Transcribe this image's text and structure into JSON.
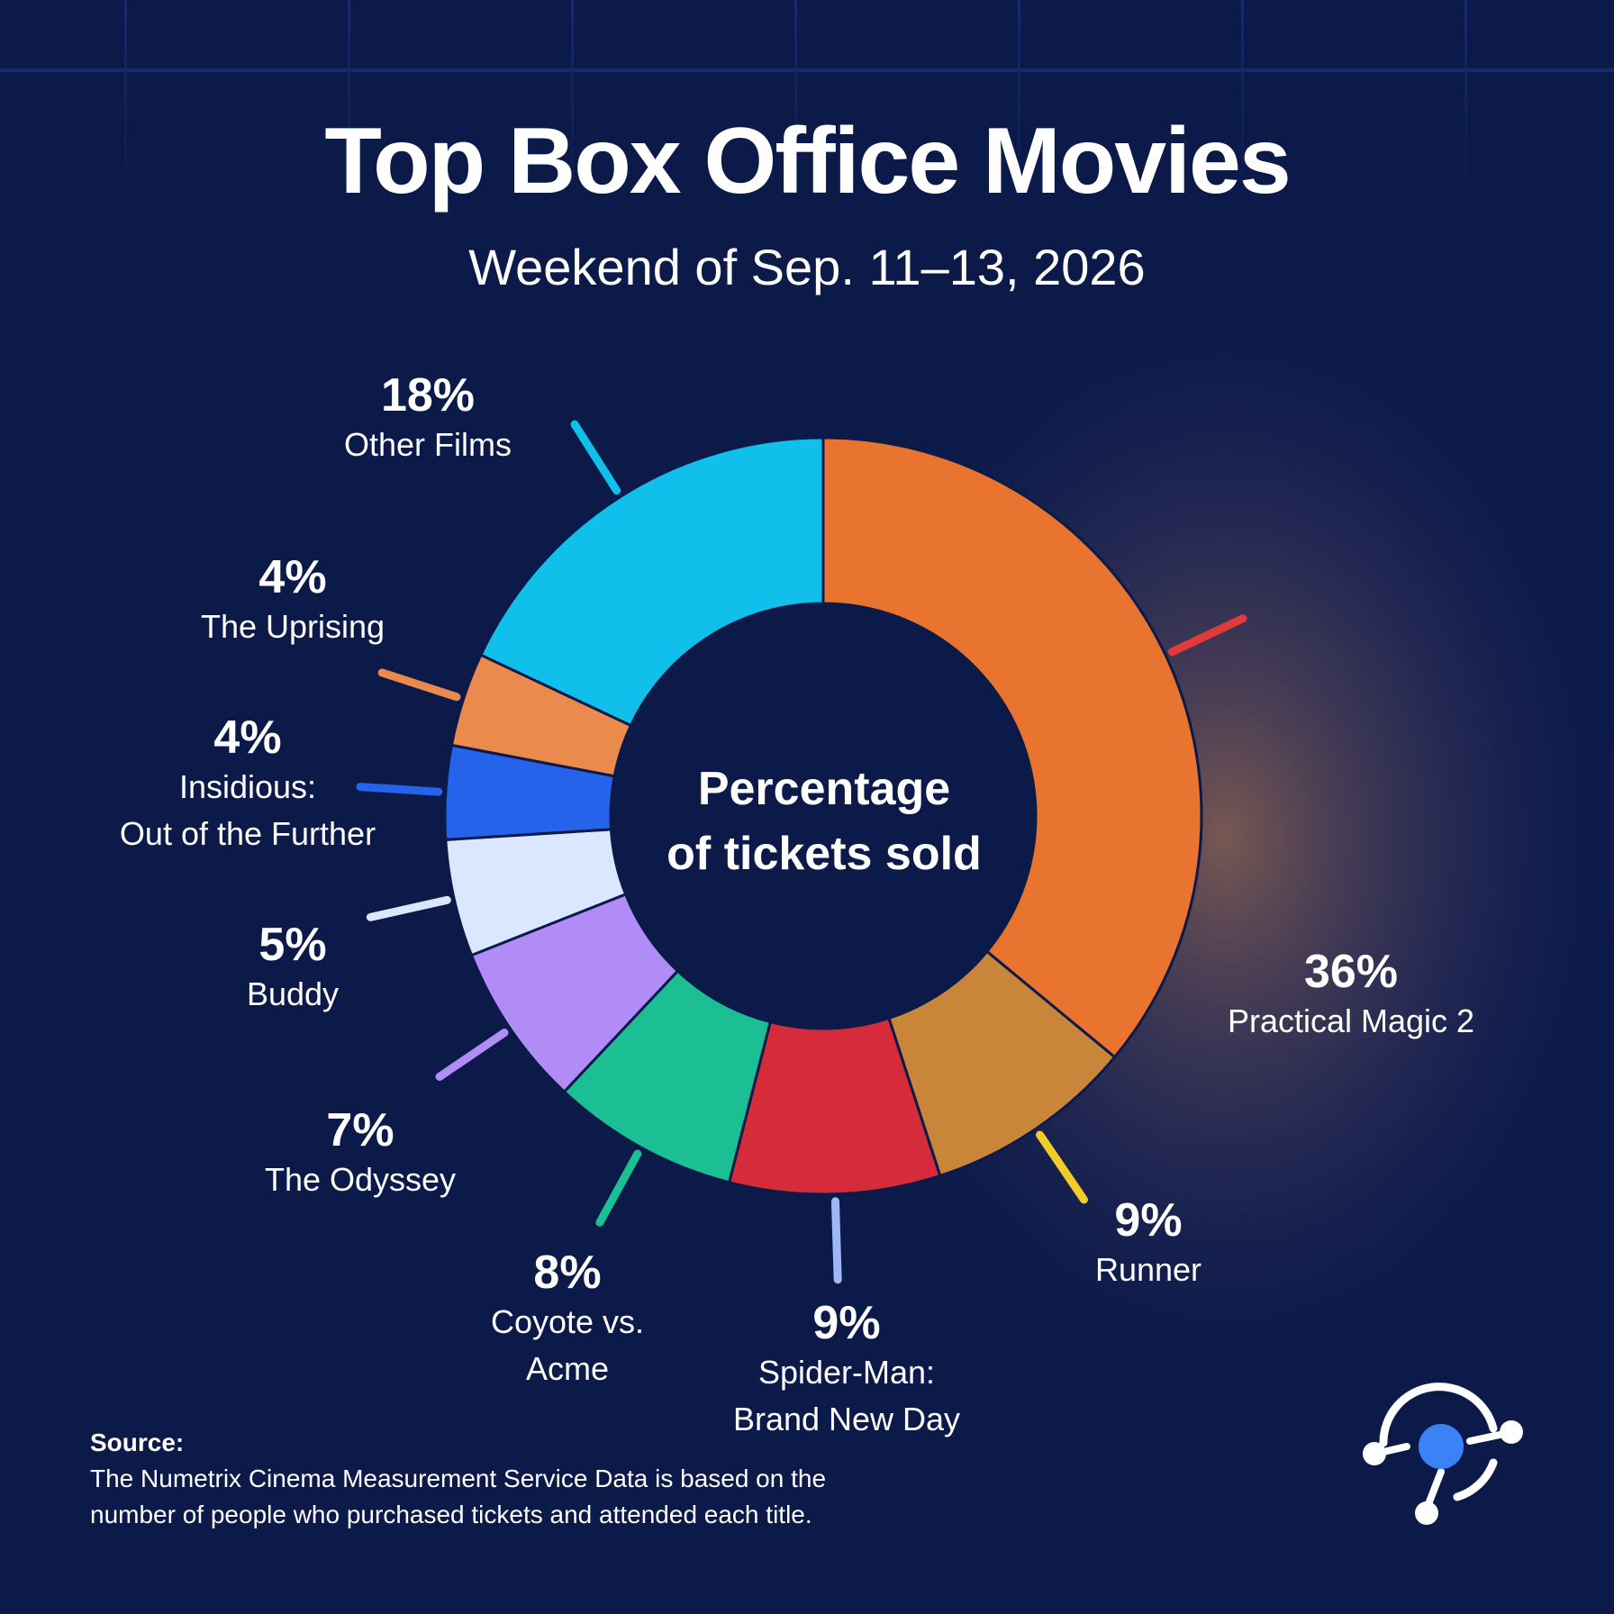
{
  "title": "Top Box Office Movies",
  "subtitle": "Weekend of Sep. 11–13, 2026",
  "center_label": [
    "Percentage",
    "of tickets sold"
  ],
  "chart_data": {
    "type": "pie",
    "title": "Top Box Office Movies",
    "subtitle": "Weekend of Sep. 11–13, 2026",
    "donut": true,
    "slices": [
      {
        "name": "Practical Magic 2",
        "value": 36,
        "label": "36%",
        "color": "#e8742f",
        "leader_color": "#e03a3a"
      },
      {
        "name": "Runner",
        "value": 9,
        "label": "9%",
        "color": "#c9863a",
        "leader_color": "#f2cd2a"
      },
      {
        "name": "Spider-Man: Brand New Day",
        "value": 9,
        "label": "9%",
        "color": "#d62b3a",
        "leader_color": "#9db8f5"
      },
      {
        "name": "Coyote vs. Acme",
        "value": 8,
        "label": "8%",
        "color": "#1bbf93",
        "leader_color": "#1bbf93"
      },
      {
        "name": "The Odyssey",
        "value": 7,
        "label": "7%",
        "color": "#b18cf7",
        "leader_color": "#b18cf7"
      },
      {
        "name": "Buddy",
        "value": 5,
        "label": "5%",
        "color": "#dbe7ff",
        "leader_color": "#dbe7ff"
      },
      {
        "name": "Insidious: Out of the Further",
        "value": 4,
        "label": "4%",
        "color": "#2563eb",
        "leader_color": "#2563eb"
      },
      {
        "name": "The Uprising",
        "value": 4,
        "label": "4%",
        "color": "#ea8a4c",
        "leader_color": "#ea8a4c"
      },
      {
        "name": "Other Films",
        "value": 18,
        "label": "18%",
        "color": "#10c0ea",
        "leader_color": "#10c0ea"
      }
    ]
  },
  "labels": [
    {
      "pct": "36%",
      "name": [
        "Practical Magic 2"
      ]
    },
    {
      "pct": "9%",
      "name": [
        "Runner"
      ]
    },
    {
      "pct": "9%",
      "name": [
        "Spider-Man:",
        "Brand New Day"
      ]
    },
    {
      "pct": "8%",
      "name": [
        "Coyote vs.",
        "Acme"
      ]
    },
    {
      "pct": "7%",
      "name": [
        "The Odyssey"
      ]
    },
    {
      "pct": "5%",
      "name": [
        "Buddy"
      ]
    },
    {
      "pct": "4%",
      "name": [
        "Insidious:",
        "Out of the Further"
      ]
    },
    {
      "pct": "4%",
      "name": [
        "The Uprising"
      ]
    },
    {
      "pct": "18%",
      "name": [
        "Other Films"
      ]
    }
  ],
  "source": {
    "title": "Source:",
    "lines": [
      "The Numetrix Cinema Measurement Service Data is based on the",
      "number of people who purchased tickets and attended each title."
    ]
  },
  "colors": {
    "background": "#0c1a4a",
    "donut_hole": "#0c1a4a",
    "text": "#ffffff",
    "logo_accent": "#3b82f6"
  }
}
